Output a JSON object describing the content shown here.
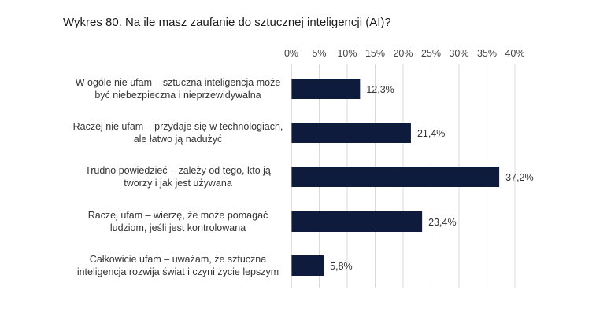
{
  "chart_data": {
    "type": "bar",
    "orientation": "horizontal",
    "title": "Wykres 80. Na ile masz zaufanie do sztucznej inteligencji (AI)?",
    "categories": [
      [
        "W ogóle nie ufam – sztuczna inteligencja może",
        "być niebezpieczna i nieprzewidywalna"
      ],
      [
        "Raczej nie ufam – przydaje się w technologiach,",
        "ale łatwo ją nadużyć"
      ],
      [
        "Trudno powiedzieć – zależy od tego, kto ją",
        "tworzy i jak jest używana"
      ],
      [
        "Raczej ufam – wierzę, że może pomagać",
        "ludziom, jeśli jest kontrolowana"
      ],
      [
        "Całkowicie ufam – uważam, że sztuczna",
        "inteligencja rozwija świat i czyni życie lepszym"
      ]
    ],
    "values": [
      12.3,
      21.4,
      37.2,
      23.4,
      5.8
    ],
    "value_labels": [
      "12,3%",
      "21,4%",
      "37,2%",
      "23,4%",
      "5,8%"
    ],
    "xlim": [
      0,
      40
    ],
    "ticks": [
      0,
      5,
      10,
      15,
      20,
      25,
      30,
      35,
      40
    ],
    "tick_labels": [
      "0%",
      "5%",
      "10%",
      "15%",
      "20%",
      "25%",
      "30%",
      "35%",
      "40%"
    ],
    "axis_position": "top",
    "grid": true,
    "bar_color": "#0f1b3d",
    "grid_color": "#d9d9d9"
  }
}
